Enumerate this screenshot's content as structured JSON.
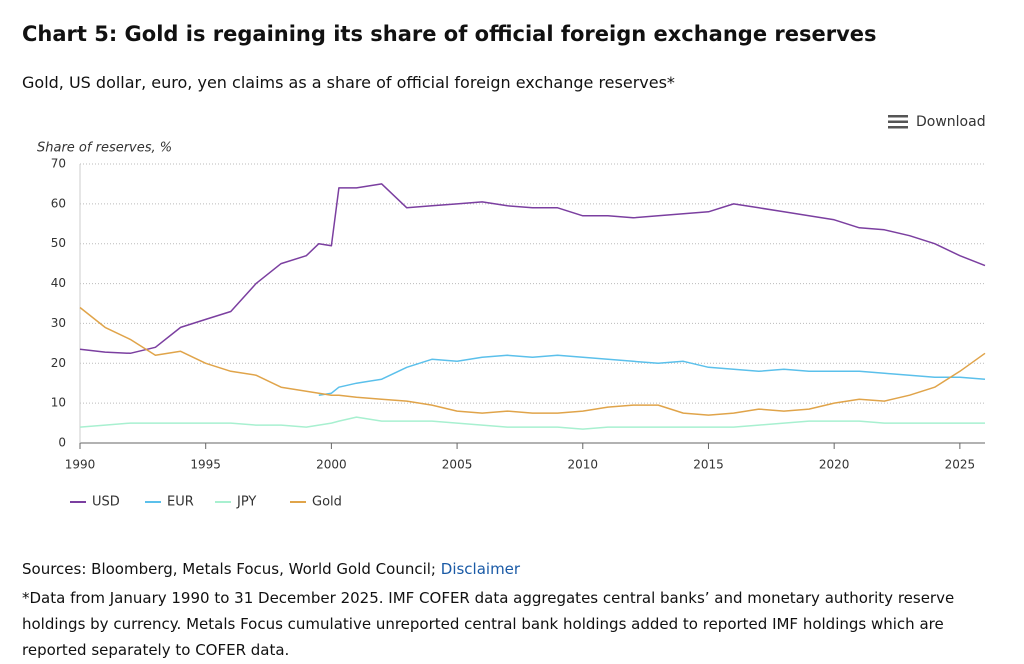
{
  "chart_data": {
    "type": "line",
    "title": "Chart 5: Gold is regaining its share of official foreign exchange reserves",
    "subtitle": "Gold, US dollar, euro, yen claims as a share of official foreign exchange reserves*",
    "ylabel": "Share of reserves, %",
    "x": [
      1990,
      1991,
      1992,
      1993,
      1994,
      1995,
      1996,
      1997,
      1998,
      1999,
      1999.5,
      2000,
      2000.3,
      2001,
      2002,
      2003,
      2004,
      2005,
      2006,
      2007,
      2008,
      2009,
      2010,
      2011,
      2012,
      2013,
      2014,
      2015,
      2016,
      2017,
      2018,
      2019,
      2020,
      2021,
      2022,
      2023,
      2024,
      2025,
      2026
    ],
    "series": [
      {
        "name": "USD",
        "color": "#7b3fa0",
        "values": [
          23.5,
          22.8,
          22.5,
          24,
          29,
          31,
          33,
          40,
          45,
          47,
          50,
          49.5,
          64,
          64,
          65,
          59,
          59.5,
          60,
          60.5,
          59.5,
          59,
          59,
          57,
          57,
          56.5,
          57,
          57.5,
          58,
          60,
          59,
          58,
          57,
          56,
          54,
          53.5,
          52,
          50,
          47,
          44.5
        ]
      },
      {
        "name": "EUR",
        "color": "#5bc0eb",
        "values": [
          null,
          null,
          null,
          null,
          null,
          null,
          null,
          null,
          null,
          null,
          12,
          12.5,
          14,
          15,
          16,
          19,
          21,
          20.5,
          21.5,
          22,
          21.5,
          22,
          21.5,
          21,
          20.5,
          20,
          20.5,
          19,
          18.5,
          18,
          18.5,
          18,
          18,
          18,
          17.5,
          17,
          16.5,
          16.5,
          16
        ]
      },
      {
        "name": "JPY",
        "color": "#a8f0d0",
        "values": [
          4,
          4.5,
          5,
          5,
          5,
          5,
          5,
          4.5,
          4.5,
          4,
          4.5,
          5,
          5.5,
          6.5,
          5.5,
          5.5,
          5.5,
          5,
          4.5,
          4,
          4,
          4,
          3.5,
          4,
          4,
          4,
          4,
          4,
          4,
          4.5,
          5,
          5.5,
          5.5,
          5.5,
          5,
          5,
          5,
          5,
          5
        ]
      },
      {
        "name": "Gold",
        "color": "#e0a44a",
        "values": [
          34,
          29,
          26,
          22,
          23,
          20,
          18,
          17,
          14,
          13,
          12.5,
          12,
          12,
          11.5,
          11,
          10.5,
          9.5,
          8,
          7.5,
          8,
          7.5,
          7.5,
          8,
          9,
          9.5,
          9.5,
          7.5,
          7,
          7.5,
          8.5,
          8,
          8.5,
          10,
          11,
          10.5,
          12,
          14,
          18,
          22.5
        ]
      }
    ],
    "xlim": [
      1990,
      2026
    ],
    "xticks": [
      1990,
      1995,
      2000,
      2005,
      2010,
      2015,
      2020,
      2025
    ],
    "ylim": [
      0,
      70
    ],
    "yticks": [
      0,
      10,
      20,
      30,
      40,
      50,
      60,
      70
    ],
    "grid": true,
    "legend": "bottom"
  },
  "download": "Download",
  "sources": "Sources: Bloomberg, Metals Focus, World Gold Council;",
  "disclaimer": "Disclaimer",
  "footnote": "*Data from January 1990 to 31 December 2025. IMF COFER data aggregates central banks’ and monetary authority reserve holdings by currency. Metals Focus cumulative unreported central bank holdings added to reported IMF holdings which are reported separately to COFER data."
}
